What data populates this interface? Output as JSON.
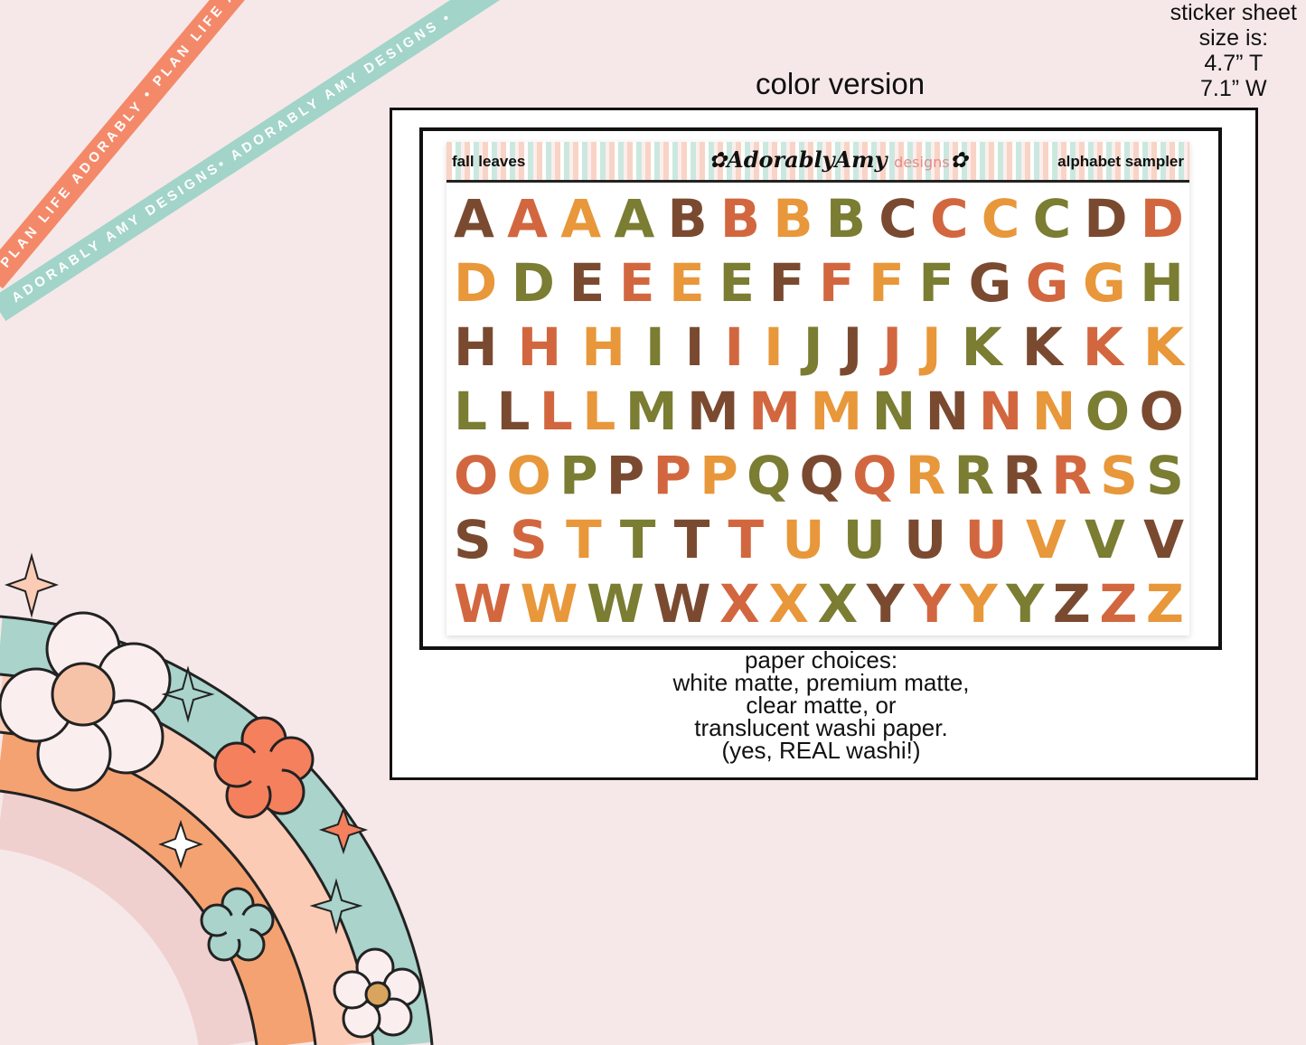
{
  "ribbons": {
    "coral": "PLAN LIFE ADORABLY • PLAN LIFE ADORABLY • PLAN LIFE AD",
    "teal": "ADORABLY AMY DESIGNS• ADORABLY AMY DESIGNS •"
  },
  "size_note": [
    "sticker sheet",
    "size is:",
    "4.7” T",
    "7.1” W"
  ],
  "title": "color version",
  "sheet": {
    "left_label": "fall leaves",
    "logo": "AdorablyAmy",
    "logo_sub": "designs",
    "right_label": "alphabet sampler"
  },
  "letters": [
    "AAAABBBBCCCCDD",
    "DDEEEEFFFFGGGH",
    "HHHIIIIJJJJKKKK",
    "LLLLMMMMNNNNOO",
    "OOPPPPQQQRRRRSS",
    "SSTTTTUUUUVVV",
    "WWWWXXXYYYYZZZ"
  ],
  "palette": [
    "#7a4a30",
    "#d2673f",
    "#e8973a",
    "#7a7d32"
  ],
  "paper": [
    "paper choices:",
    "white matte, premium matte,",
    "clear matte, or",
    "translucent washi paper.",
    "(yes, REAL washi!)"
  ]
}
